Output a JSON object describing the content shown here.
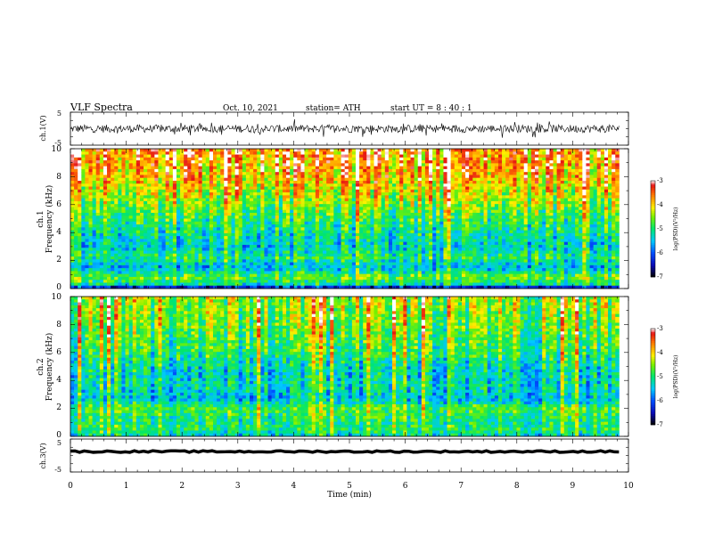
{
  "header": {
    "title": "VLF  Spectra",
    "date": "Oct. 10, 2021",
    "station": "station= ATH",
    "start_ut": "start  UT  =   8  : 40 : 1"
  },
  "chart_data": [
    {
      "id": "ch1-waveform",
      "type": "line",
      "ylabel": "ch.1(V)",
      "ylim": [
        -5,
        5
      ],
      "yticks": [
        "5",
        "-5"
      ],
      "xlim": [
        0,
        10
      ],
      "data_extent_min": 9.83,
      "mean": 0.0,
      "amplitude": 1.2,
      "color": "#000000"
    },
    {
      "id": "ch1-spectrogram",
      "type": "heatmap",
      "ylabel": [
        "ch.1",
        "Frequency  (kHz)"
      ],
      "ylim": [
        0,
        10
      ],
      "yticks": [
        "0",
        "2",
        "4",
        "6",
        "8",
        "10"
      ],
      "xlim": [
        0,
        10
      ],
      "data_extent_min": 9.83,
      "colorbar": {
        "label": "log(PSD)(V²/Hz)",
        "range": [
          -7,
          -3
        ],
        "ticks": [
          "-3",
          "-4",
          "-5",
          "-6",
          "-7"
        ]
      },
      "intensity_profile": [
        {
          "f_khz": 0.0,
          "level": -6.8
        },
        {
          "f_khz": 0.3,
          "level": -5.2
        },
        {
          "f_khz": 0.8,
          "level": -4.6
        },
        {
          "f_khz": 1.5,
          "level": -5.6
        },
        {
          "f_khz": 2.2,
          "level": -5.0
        },
        {
          "f_khz": 3.0,
          "level": -5.4
        },
        {
          "f_khz": 4.0,
          "level": -5.2
        },
        {
          "f_khz": 5.0,
          "level": -4.9
        },
        {
          "f_khz": 6.5,
          "level": -4.4
        },
        {
          "f_khz": 8.0,
          "level": -3.9
        },
        {
          "f_khz": 10.0,
          "level": -3.6
        }
      ]
    },
    {
      "id": "ch2-spectrogram",
      "type": "heatmap",
      "ylabel": [
        "ch.2",
        "Frequency  (kHz)"
      ],
      "ylim": [
        0,
        10
      ],
      "yticks": [
        "0",
        "2",
        "4",
        "6",
        "8",
        "10"
      ],
      "xlim": [
        0,
        10
      ],
      "data_extent_min": 9.83,
      "colorbar": {
        "label": "log(PSD)(V²/Hz)",
        "range": [
          -7,
          -3
        ],
        "ticks": [
          "-3",
          "-4",
          "-5",
          "-6",
          "-7"
        ]
      },
      "intensity_profile": [
        {
          "f_khz": 0.0,
          "level": -5.4
        },
        {
          "f_khz": 0.5,
          "level": -5.0
        },
        {
          "f_khz": 1.2,
          "level": -5.1
        },
        {
          "f_khz": 2.0,
          "level": -4.8
        },
        {
          "f_khz": 2.7,
          "level": -5.6
        },
        {
          "f_khz": 3.5,
          "level": -5.3
        },
        {
          "f_khz": 4.5,
          "level": -5.4
        },
        {
          "f_khz": 6.0,
          "level": -5.0
        },
        {
          "f_khz": 8.0,
          "level": -4.7
        },
        {
          "f_khz": 10.0,
          "level": -4.5
        }
      ]
    },
    {
      "id": "ch3-waveform",
      "type": "line",
      "ylabel": "ch.3(V)",
      "ylim": [
        -5,
        5
      ],
      "yticks": [
        "5",
        "-5"
      ],
      "xlim": [
        0,
        10
      ],
      "data_extent_min": 9.83,
      "mean": 1.2,
      "amplitude": 0.25,
      "color": "#000000"
    }
  ],
  "x_axis": {
    "label": "Time  (min)",
    "ticks": [
      "0",
      "1",
      "2",
      "3",
      "4",
      "5",
      "6",
      "7",
      "8",
      "9",
      "10"
    ]
  }
}
